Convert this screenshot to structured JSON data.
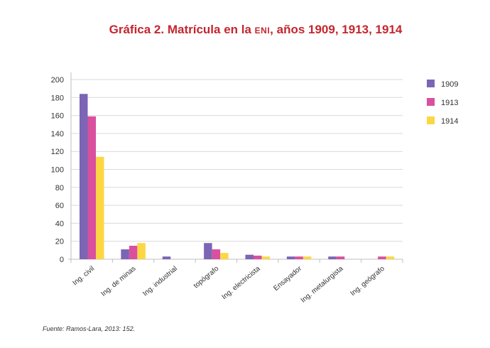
{
  "colors": {
    "title": "#c4262e",
    "series_1909": "#7b65b4",
    "series_1913": "#d9509f",
    "series_1914": "#fbd743",
    "gridline": "#d9d9d9",
    "axis": "#bfbfbf"
  },
  "title_prefix": "Gráfica 2. Matrícula en la ",
  "title_smallcaps": "eni",
  "title_suffix": ", años 1909, 1913, 1914",
  "source": "Fuente: Ramos-Lara, 2013: 152.",
  "chart_data": {
    "type": "bar",
    "title": "Gráfica 2. Matrícula en la eni, años 1909, 1913, 1914",
    "xlabel": "",
    "ylabel": "",
    "ylim": [
      0,
      200
    ],
    "yticks": [
      0,
      20,
      40,
      60,
      80,
      100,
      120,
      140,
      160,
      180,
      200
    ],
    "grid": true,
    "legend": "right",
    "categories": [
      "Ing. civil",
      "Ing. de minas",
      "Ing. industrial",
      "topógrafo",
      "Ing. electricista",
      "Ensayador",
      "Ing. metalurgista",
      "Ing. geógrafo"
    ],
    "series": [
      {
        "name": "1909",
        "values": [
          184,
          11,
          3,
          18,
          5,
          3,
          3,
          0
        ]
      },
      {
        "name": "1913",
        "values": [
          159,
          15,
          0,
          11,
          4,
          3,
          3,
          3
        ]
      },
      {
        "name": "1914",
        "values": [
          114,
          18,
          0,
          7,
          3,
          3,
          0,
          3
        ]
      }
    ]
  }
}
